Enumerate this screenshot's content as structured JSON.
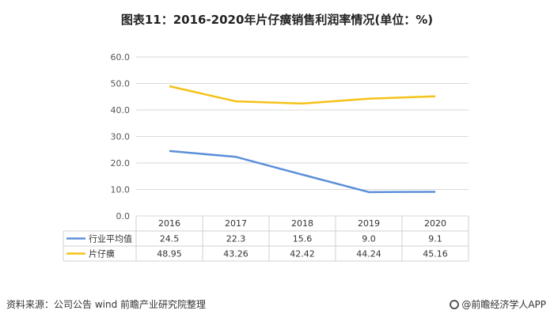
{
  "header": {
    "title": "图表11：2016-2020年片仔癀销售利润率情况(单位：%)"
  },
  "footer": {
    "source": "资料来源：公司公告 wind 前瞻产业研究院整理",
    "brand": "@前瞻经济学人APP"
  },
  "chart_data": {
    "type": "line",
    "title": "图表11：2016-2020年片仔癀销售利润率情况(单位：%)",
    "categories": [
      "2016",
      "2017",
      "2018",
      "2019",
      "2020"
    ],
    "ylim": [
      0,
      60
    ],
    "y_ticks": [
      "0.0",
      "10.0",
      "20.0",
      "30.0",
      "40.0",
      "50.0",
      "60.0"
    ],
    "grid": true,
    "legend": "bottom-table",
    "series": [
      {
        "name": "行业平均值",
        "color": "#5B8FD9",
        "values": [
          24.5,
          22.3,
          15.6,
          9.0,
          9.1
        ],
        "labels": [
          "24.5",
          "22.3",
          "15.6",
          "9.0",
          "9.1"
        ]
      },
      {
        "name": "片仔癀",
        "color": "#F5C218",
        "values": [
          48.95,
          43.26,
          42.42,
          44.24,
          45.16
        ],
        "labels": [
          "48.95",
          "43.26",
          "42.42",
          "44.24",
          "45.16"
        ]
      }
    ]
  }
}
